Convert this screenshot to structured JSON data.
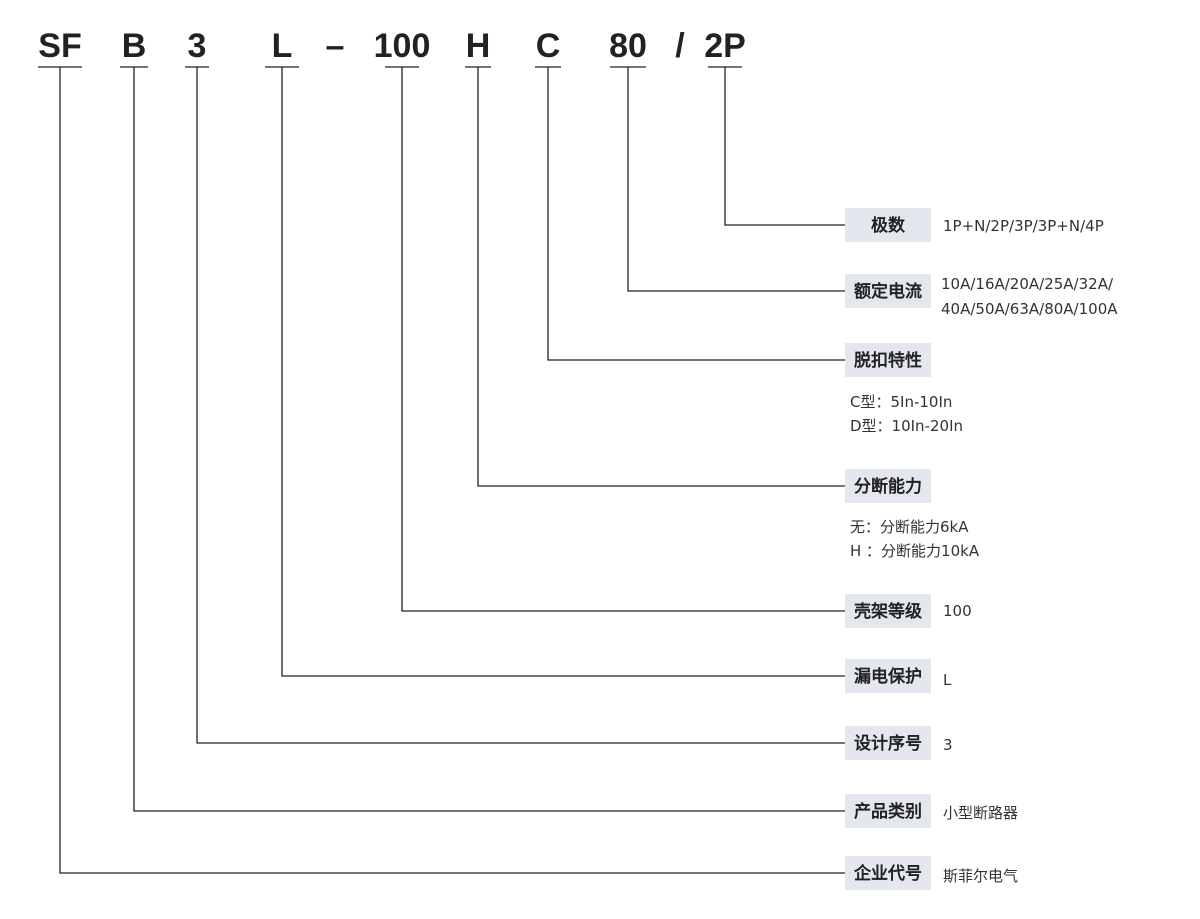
{
  "code": [
    "SF",
    "B",
    "3",
    "L",
    "–",
    "100",
    "H",
    "C",
    "80",
    "/",
    "2P"
  ],
  "fields": [
    {
      "label": "极数",
      "lines": [
        "1P+N/2P/3P/3P+N/4P"
      ]
    },
    {
      "label": "额定电流",
      "lines": [
        "10A/16A/20A/25A/32A/",
        "40A/50A/63A/80A/100A"
      ]
    },
    {
      "label": "脱扣特性",
      "lines": [
        "C型：5In-10In",
        "D型：10In-20In"
      ]
    },
    {
      "label": "分断能力",
      "lines": [
        "无：分断能力6kA",
        "H ：分断能力10kA"
      ]
    },
    {
      "label": "壳架等级",
      "lines": [
        "100"
      ]
    },
    {
      "label": "漏电保护",
      "lines": [
        "L"
      ]
    },
    {
      "label": "设计序号",
      "lines": [
        "3"
      ]
    },
    {
      "label": "产品类别",
      "lines": [
        "小型断路器"
      ]
    },
    {
      "label": "企业代号",
      "lines": [
        "斯菲尔电气"
      ]
    }
  ]
}
